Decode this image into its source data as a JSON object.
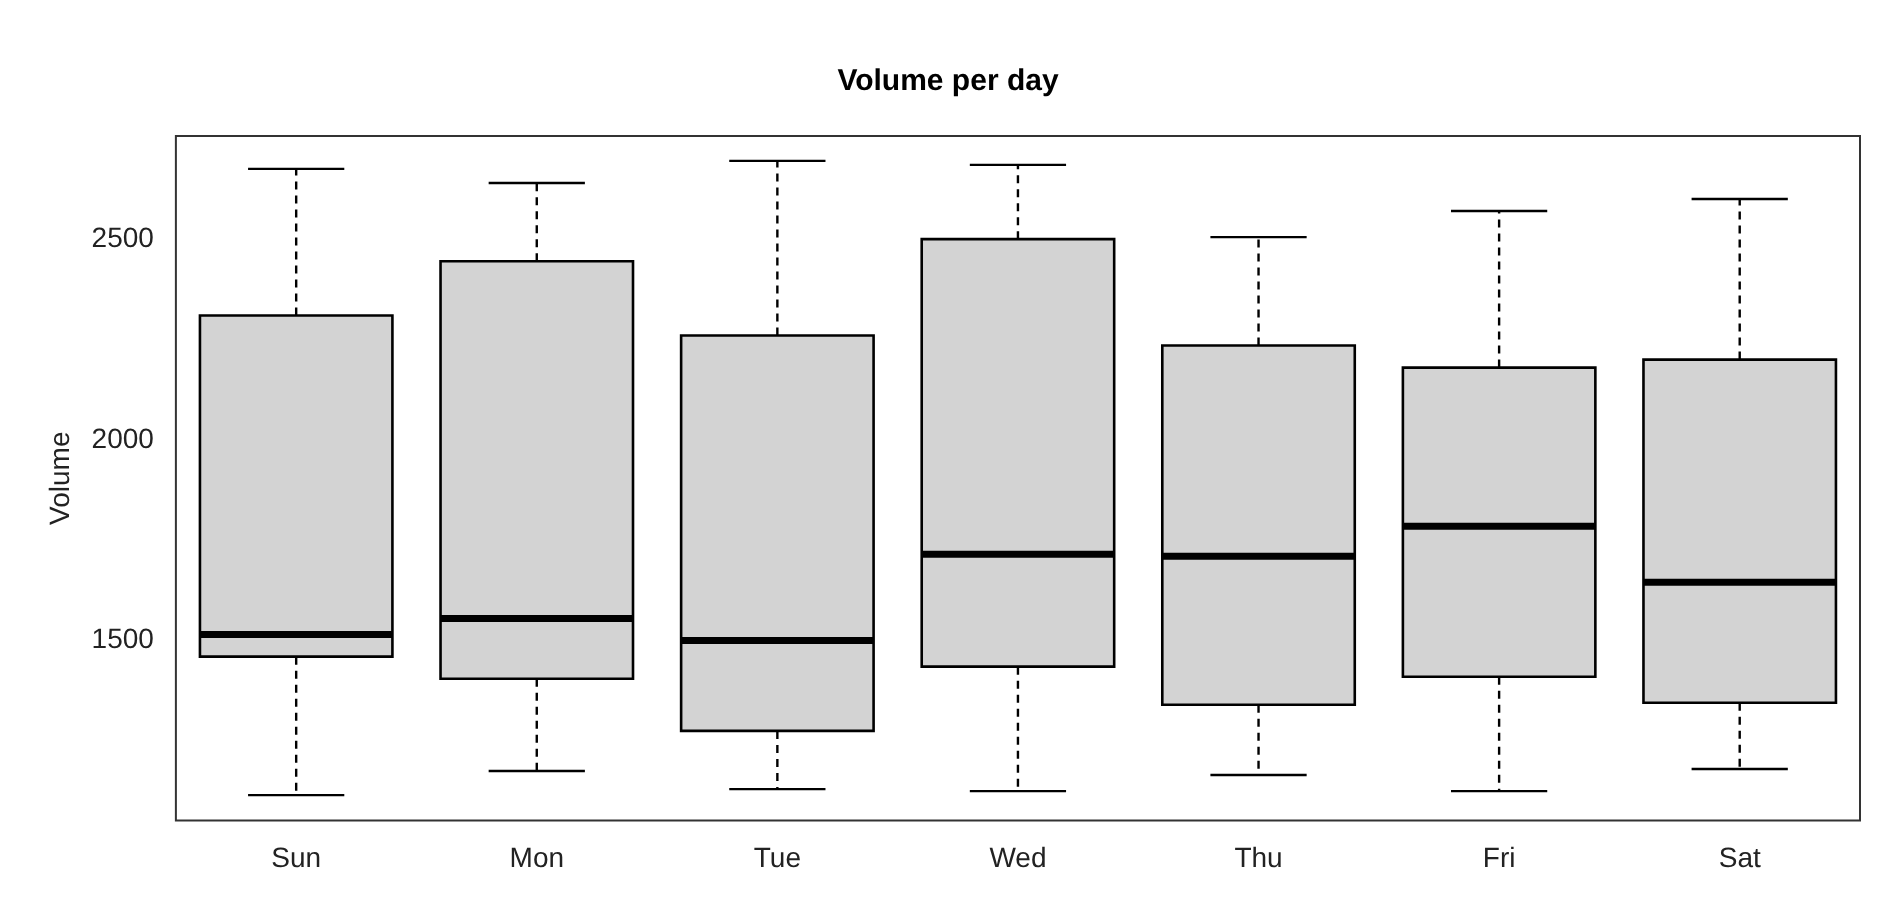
{
  "chart_data": {
    "type": "box",
    "title": "Volume per day",
    "ylabel": "Volume",
    "categories": [
      "Sun",
      "Mon",
      "Tue",
      "Wed",
      "Thu",
      "Fri",
      "Sat"
    ],
    "color": "#d3d3d3",
    "boxes": [
      {
        "low": 1115,
        "q1": 1460,
        "median": 1515,
        "q3": 2310,
        "high": 2675
      },
      {
        "low": 1175,
        "q1": 1405,
        "median": 1555,
        "q3": 2445,
        "high": 2640
      },
      {
        "low": 1130,
        "q1": 1275,
        "median": 1500,
        "q3": 2260,
        "high": 2695
      },
      {
        "low": 1125,
        "q1": 1435,
        "median": 1715,
        "q3": 2500,
        "high": 2685
      },
      {
        "low": 1165,
        "q1": 1340,
        "median": 1710,
        "q3": 2235,
        "high": 2505
      },
      {
        "low": 1125,
        "q1": 1410,
        "median": 1785,
        "q3": 2180,
        "high": 2570
      },
      {
        "low": 1180,
        "q1": 1345,
        "median": 1645,
        "q3": 2200,
        "high": 2600
      }
    ],
    "ylim": [
      1052,
      2757
    ],
    "yticks": [
      1500,
      2000,
      2500
    ],
    "grid": false,
    "legend": false
  }
}
